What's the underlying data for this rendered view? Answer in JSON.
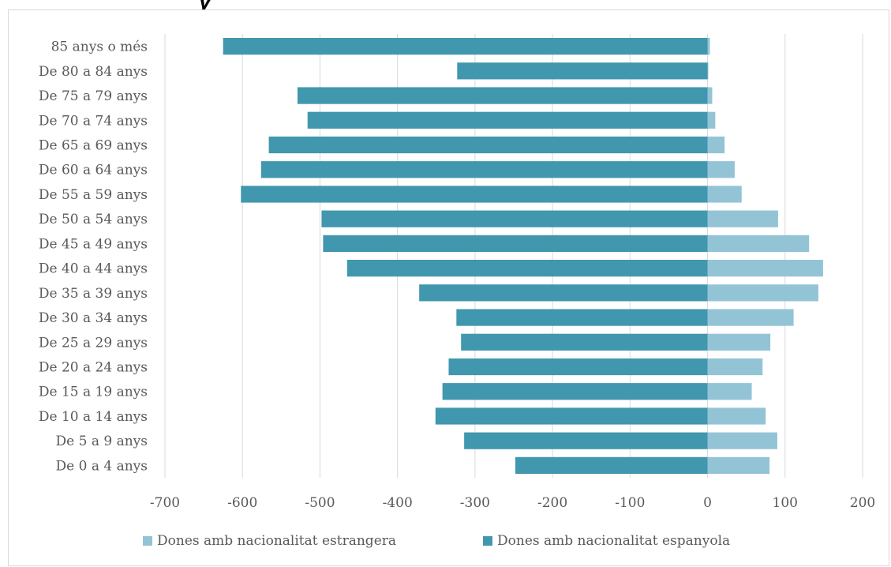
{
  "chart_data": {
    "type": "bar",
    "orientation": "horizontal",
    "categories": [
      "85 anys o més",
      "De 80 a 84 anys",
      "De 75 a 79 anys",
      "De 70 a 74 anys",
      "De 65 a 69 anys",
      "De 60 a 64 anys",
      "De 55 a 59 anys",
      "De 50 a 54 anys",
      "De 45 a 49 anys",
      "De 40 a 44 anys",
      "De 35 a 39 anys",
      "De 30 a 34 anys",
      "De 25 a 29 anys",
      "De 20 a 24 anys",
      "De 15 a 19 anys",
      "De 10 a 14 anys",
      "De 5 a 9 anys",
      "De 0 a 4 anys"
    ],
    "series": [
      {
        "name": "Dones amb nacionalitat estrangera",
        "color": "#93c4d6",
        "values": [
          3,
          1,
          6,
          10,
          22,
          35,
          44,
          91,
          131,
          149,
          143,
          111,
          81,
          71,
          57,
          75,
          90,
          80
        ]
      },
      {
        "name": "Dones amb nacionalitat espanyola",
        "color": "#4197ae",
        "values": [
          -625,
          -323,
          -529,
          -516,
          -566,
          -576,
          -602,
          -498,
          -496,
          -465,
          -372,
          -324,
          -318,
          -334,
          -342,
          -351,
          -314,
          -248
        ]
      }
    ],
    "xlim": [
      -700,
      200
    ],
    "xticks": [
      -700,
      -600,
      -500,
      -400,
      -300,
      -200,
      -100,
      0,
      100,
      200
    ],
    "grid": true,
    "legend_position": "bottom"
  }
}
